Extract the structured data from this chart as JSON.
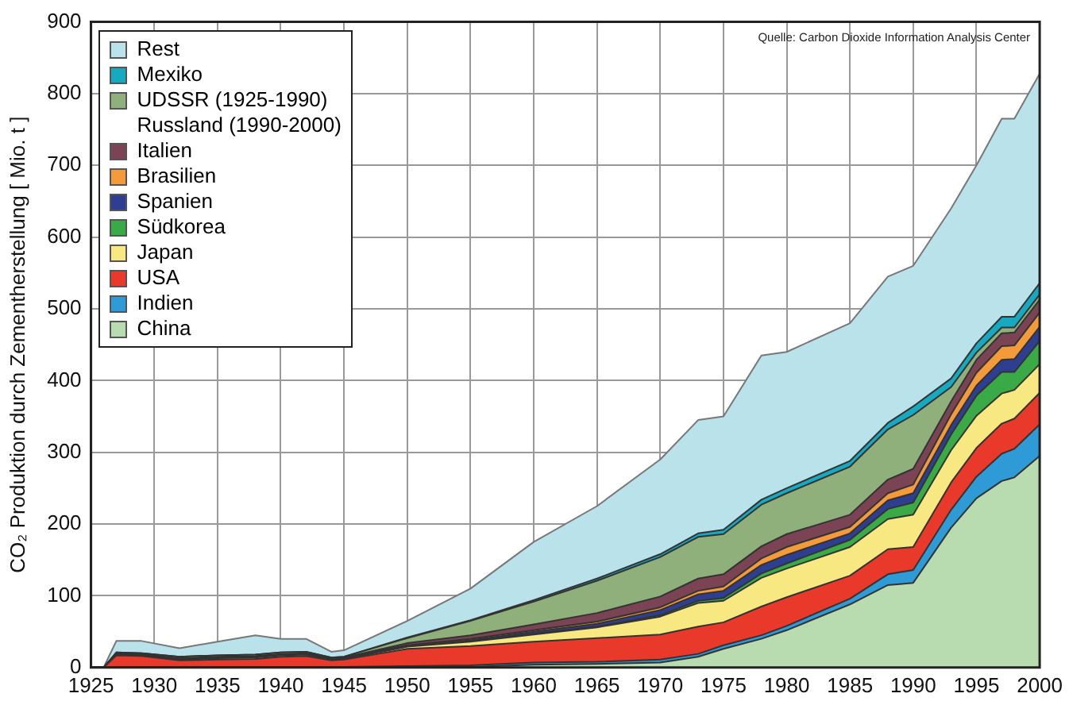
{
  "chart_data": {
    "type": "area",
    "stacked": true,
    "ylabel": "CO₂ Produktion durch Zementherstellung [ Mio. t ]",
    "annotations": [
      "Quelle: Carbon Dioxide Information Analysis Center"
    ],
    "x": [
      1925,
      1926,
      1927,
      1929,
      1932,
      1935,
      1938,
      1940,
      1942,
      1944,
      1945,
      1950,
      1955,
      1960,
      1965,
      1970,
      1973,
      1975,
      1978,
      1980,
      1985,
      1988,
      1990,
      1993,
      1995,
      1997,
      1998,
      2000
    ],
    "xlim": [
      1925,
      2000
    ],
    "xticks": [
      1925,
      1930,
      1935,
      1940,
      1945,
      1950,
      1955,
      1960,
      1965,
      1970,
      1975,
      1980,
      1985,
      1990,
      1995,
      2000
    ],
    "ylim": [
      0,
      900
    ],
    "yticks": [
      0,
      100,
      200,
      300,
      400,
      500,
      600,
      700,
      800,
      900
    ],
    "grid": true,
    "legend": "top left",
    "series": [
      {
        "name": "China",
        "color": "#b9dbb0",
        "values": [
          0,
          0,
          0,
          0,
          0,
          0,
          0,
          0,
          0,
          0,
          0,
          1,
          1,
          4,
          5,
          7,
          15,
          26,
          40,
          52,
          88,
          115,
          118,
          195,
          236,
          260,
          265,
          295
        ]
      },
      {
        "name": "Indien",
        "color": "#2e9ad6",
        "values": [
          0,
          0,
          1,
          1,
          1,
          1,
          1,
          1,
          1,
          1,
          1,
          1,
          2,
          3,
          3,
          4,
          4,
          5,
          5,
          6,
          8,
          15,
          18,
          25,
          30,
          38,
          40,
          44
        ]
      },
      {
        "name": "USA",
        "color": "#e8392a",
        "values": [
          0,
          0,
          16,
          15,
          9,
          10,
          11,
          14,
          15,
          9,
          10,
          24,
          27,
          29,
          33,
          35,
          38,
          32,
          40,
          40,
          32,
          35,
          32,
          38,
          40,
          42,
          42,
          44
        ]
      },
      {
        "name": "Japan",
        "color": "#f7e882",
        "values": [
          0,
          0,
          1,
          1,
          1,
          2,
          2,
          2,
          2,
          1,
          1,
          3,
          6,
          10,
          15,
          25,
          33,
          30,
          40,
          40,
          40,
          42,
          45,
          45,
          45,
          42,
          40,
          40
        ]
      },
      {
        "name": "Südkorea",
        "color": "#3aaa46",
        "values": [
          0,
          0,
          0,
          0,
          0,
          0,
          0,
          0,
          0,
          0,
          0,
          0,
          0,
          1,
          1,
          2,
          3,
          4,
          6,
          7,
          10,
          14,
          17,
          22,
          28,
          30,
          25,
          32
        ]
      },
      {
        "name": "Spanien",
        "color": "#2e3f92",
        "values": [
          0,
          0,
          1,
          1,
          1,
          1,
          1,
          1,
          1,
          1,
          1,
          1,
          2,
          3,
          4,
          7,
          9,
          10,
          12,
          12,
          9,
          12,
          13,
          13,
          14,
          17,
          18,
          20
        ]
      },
      {
        "name": "Brasilien",
        "color": "#f39a3b",
        "values": [
          0,
          0,
          0,
          0,
          0,
          0,
          0,
          0,
          0,
          0,
          0,
          1,
          2,
          2,
          3,
          4,
          5,
          6,
          9,
          11,
          9,
          10,
          12,
          15,
          18,
          19,
          19,
          20
        ]
      },
      {
        "name": "Italien",
        "color": "#7b4455",
        "values": [
          0,
          0,
          1,
          1,
          1,
          1,
          1,
          1,
          1,
          1,
          1,
          3,
          5,
          8,
          12,
          15,
          17,
          17,
          17,
          18,
          17,
          19,
          22,
          18,
          18,
          18,
          18,
          18
        ]
      },
      {
        "name": "UDSSR (1925-1990)\nRussland (1990-2000)",
        "color": "#8fb07a",
        "values": [
          0,
          0,
          1,
          1,
          2,
          2,
          2,
          2,
          2,
          1,
          1,
          7,
          20,
          32,
          45,
          55,
          58,
          56,
          58,
          57,
          67,
          70,
          75,
          20,
          10,
          8,
          7,
          7
        ]
      },
      {
        "name": "Mexiko",
        "color": "#16a9c0",
        "values": [
          0,
          0,
          0,
          0,
          0,
          0,
          0,
          0,
          0,
          0,
          0,
          1,
          1,
          2,
          3,
          4,
          5,
          6,
          7,
          7,
          8,
          9,
          12,
          12,
          13,
          15,
          15,
          16
        ]
      },
      {
        "name": "Rest",
        "color": "#b9e2ea",
        "values": [
          0,
          0,
          16,
          17,
          12,
          19,
          27,
          19,
          18,
          8,
          9,
          23,
          44,
          81,
          101,
          132,
          158,
          158,
          201,
          190,
          192,
          204,
          196,
          237,
          248,
          276,
          276,
          292
        ]
      }
    ]
  }
}
